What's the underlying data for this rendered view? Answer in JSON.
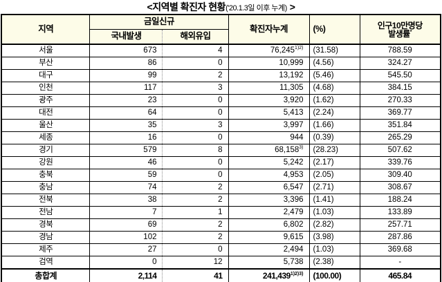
{
  "title": {
    "prefix": "<",
    "main": "지역별 확진자 현황",
    "sub": "('20.1.3일 이후 누계)",
    "suffix": ">"
  },
  "table": {
    "headers": {
      "region": "지역",
      "today_new": "금일신규",
      "domestic": "국내발생",
      "imported": "해외유입",
      "cumulative": "확진자누계",
      "percent": "(%)",
      "incidence_line1": "인구10만명당",
      "incidence_line2": "발생률",
      "incidence_sup": "*"
    },
    "rows": [
      {
        "region": "서울",
        "domestic": "673",
        "imported": "4",
        "cumulative": "76,245",
        "cumulative_sup": "1)2)",
        "percent": "(31.58)",
        "incidence": "788.59"
      },
      {
        "region": "부산",
        "domestic": "86",
        "imported": "0",
        "cumulative": "10,999",
        "cumulative_sup": "",
        "percent": "(4.56)",
        "incidence": "324.27"
      },
      {
        "region": "대구",
        "domestic": "99",
        "imported": "2",
        "cumulative": "13,192",
        "cumulative_sup": "",
        "percent": "(5.46)",
        "incidence": "545.50"
      },
      {
        "region": "인천",
        "domestic": "117",
        "imported": "3",
        "cumulative": "11,305",
        "cumulative_sup": "",
        "percent": "(4.68)",
        "incidence": "384.15"
      },
      {
        "region": "광주",
        "domestic": "23",
        "imported": "0",
        "cumulative": "3,920",
        "cumulative_sup": "",
        "percent": "(1.62)",
        "incidence": "270.33"
      },
      {
        "region": "대전",
        "domestic": "64",
        "imported": "0",
        "cumulative": "5,413",
        "cumulative_sup": "",
        "percent": "(2.24)",
        "incidence": "369.77"
      },
      {
        "region": "울산",
        "domestic": "35",
        "imported": "3",
        "cumulative": "3,997",
        "cumulative_sup": "",
        "percent": "(1.66)",
        "incidence": "351.84"
      },
      {
        "region": "세종",
        "domestic": "16",
        "imported": "0",
        "cumulative": "944",
        "cumulative_sup": "",
        "percent": "(0.39)",
        "incidence": "265.29"
      },
      {
        "region": "경기",
        "domestic": "579",
        "imported": "8",
        "cumulative": "68,158",
        "cumulative_sup": "3)",
        "percent": "(28.23)",
        "incidence": "507.62"
      },
      {
        "region": "강원",
        "domestic": "46",
        "imported": "0",
        "cumulative": "5,242",
        "cumulative_sup": "",
        "percent": "(2.17)",
        "incidence": "339.76"
      },
      {
        "region": "충북",
        "domestic": "59",
        "imported": "0",
        "cumulative": "4,953",
        "cumulative_sup": "",
        "percent": "(2.05)",
        "incidence": "309.40"
      },
      {
        "region": "충남",
        "domestic": "74",
        "imported": "2",
        "cumulative": "6,547",
        "cumulative_sup": "",
        "percent": "(2.71)",
        "incidence": "308.67"
      },
      {
        "region": "전북",
        "domestic": "38",
        "imported": "2",
        "cumulative": "3,396",
        "cumulative_sup": "",
        "percent": "(1.41)",
        "incidence": "188.24"
      },
      {
        "region": "전남",
        "domestic": "7",
        "imported": "1",
        "cumulative": "2,479",
        "cumulative_sup": "",
        "percent": "(1.03)",
        "incidence": "133.89"
      },
      {
        "region": "경북",
        "domestic": "69",
        "imported": "2",
        "cumulative": "6,802",
        "cumulative_sup": "",
        "percent": "(2.82)",
        "incidence": "257.71"
      },
      {
        "region": "경남",
        "domestic": "102",
        "imported": "2",
        "cumulative": "9,615",
        "cumulative_sup": "",
        "percent": "(3.98)",
        "incidence": "287.86"
      },
      {
        "region": "제주",
        "domestic": "27",
        "imported": "0",
        "cumulative": "2,494",
        "cumulative_sup": "",
        "percent": "(1.03)",
        "incidence": "369.68"
      },
      {
        "region": "검역",
        "domestic": "0",
        "imported": "12",
        "cumulative": "5,738",
        "cumulative_sup": "",
        "percent": "(2.38)",
        "incidence": "-"
      }
    ],
    "total": {
      "region": "총합계",
      "domestic": "2,114",
      "imported": "41",
      "cumulative": "241,439",
      "cumulative_sup": "1)2)3)",
      "percent": "(100.00)",
      "incidence": "465.84"
    }
  },
  "colors": {
    "header_bg": "#fdfce8",
    "border": "#000000"
  }
}
